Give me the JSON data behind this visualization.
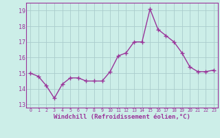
{
  "x": [
    0,
    1,
    2,
    3,
    4,
    5,
    6,
    7,
    8,
    9,
    10,
    11,
    12,
    13,
    14,
    15,
    16,
    17,
    18,
    19,
    20,
    21,
    22,
    23
  ],
  "y": [
    15.0,
    14.8,
    14.2,
    13.4,
    14.3,
    14.7,
    14.7,
    14.5,
    14.5,
    14.5,
    15.1,
    16.1,
    16.3,
    17.0,
    17.0,
    19.1,
    17.8,
    17.4,
    17.0,
    16.3,
    15.4,
    15.1,
    15.1,
    15.2
  ],
  "line_color": "#993399",
  "marker": "P",
  "marker_size": 2.5,
  "linewidth": 1.0,
  "xlabel": "Windchill (Refroidissement éolien,°C)",
  "xlabel_fontsize": 6.5,
  "ylabel_ticks": [
    13,
    14,
    15,
    16,
    17,
    18,
    19
  ],
  "xtick_labels": [
    "0",
    "1",
    "2",
    "3",
    "4",
    "5",
    "6",
    "7",
    "8",
    "9",
    "10",
    "11",
    "12",
    "13",
    "14",
    "15",
    "16",
    "17",
    "18",
    "19",
    "20",
    "21",
    "22",
    "23"
  ],
  "ylim": [
    12.8,
    19.5
  ],
  "xlim": [
    -0.5,
    23.5
  ],
  "background_color": "#cceee8",
  "grid_color": "#aacccc",
  "tick_color": "#993399",
  "label_color": "#993399"
}
